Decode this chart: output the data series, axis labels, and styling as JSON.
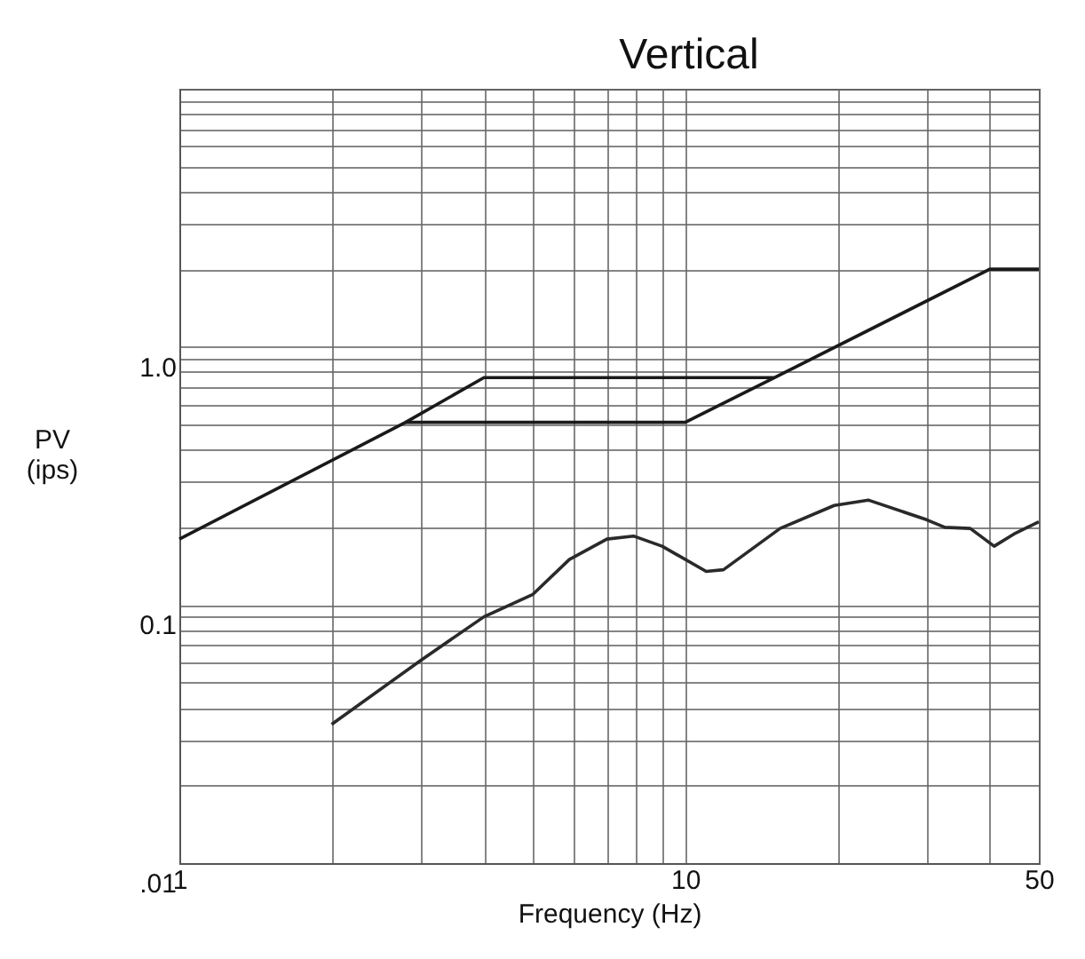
{
  "chart_data": {
    "type": "line",
    "title": "Vertical",
    "xlabel": "Frequency (Hz)",
    "ylabel": "PV (ips)",
    "log": "xy",
    "grid": true,
    "legend": false,
    "line_style": "solid",
    "marker": "none",
    "xlim": [
      1,
      50
    ],
    "ylim": [
      0.01,
      10
    ],
    "xticks": [
      1,
      {
        "value": 2,
        "label": null
      },
      {
        "value": 3,
        "label": null
      },
      {
        "value": 4,
        "label": null
      },
      {
        "value": 5,
        "label": null
      },
      {
        "value": 6,
        "label": null
      },
      {
        "value": 7,
        "label": null
      },
      {
        "value": 8,
        "label": null
      },
      {
        "value": 9,
        "label": null
      },
      10,
      {
        "value": 20,
        "label": null
      },
      {
        "value": 30,
        "label": null
      },
      {
        "value": 40,
        "label": null
      },
      50
    ],
    "yticks": [
      {
        "value": 0.01,
        "label": ".01"
      },
      {
        "value": 0.02,
        "label": null
      },
      {
        "value": 0.03,
        "label": null
      },
      {
        "value": 0.04,
        "label": null
      },
      {
        "value": 0.05,
        "label": null
      },
      {
        "value": 0.06,
        "label": null
      },
      {
        "value": 0.07,
        "label": null
      },
      {
        "value": 0.08,
        "label": null
      },
      {
        "value": 0.09,
        "label": null
      },
      0.1,
      {
        "value": 0.2,
        "label": null
      },
      {
        "value": 0.3,
        "label": null
      },
      {
        "value": 0.4,
        "label": null
      },
      {
        "value": 0.5,
        "label": null
      },
      {
        "value": 0.6,
        "label": null
      },
      {
        "value": 0.7,
        "label": null
      },
      {
        "value": 0.8,
        "label": null
      },
      {
        "value": 0.9,
        "label": null
      },
      {
        "value": 1,
        "label": "1.0"
      },
      {
        "value": 2,
        "label": null
      },
      {
        "value": 3,
        "label": null
      },
      {
        "value": 4,
        "label": null
      },
      {
        "value": 5,
        "label": null
      },
      {
        "value": 6,
        "label": null
      },
      {
        "value": 7,
        "label": null
      },
      {
        "value": 8,
        "label": null
      },
      {
        "value": 9,
        "label": null
      },
      {
        "value": 10,
        "label": null
      }
    ],
    "series": [
      {
        "color": "#1a1a1a",
        "x": [
          1,
          2.8,
          4,
          15,
          40,
          50
        ],
        "values": [
          0.18,
          0.51,
          0.76,
          0.76,
          2.0,
          2.0
        ]
      },
      {
        "color": "#1a1a1a",
        "x": [
          2.8,
          10,
          15
        ],
        "values": [
          0.51,
          0.51,
          0.76
        ]
      },
      {
        "color": "#2a2a2a",
        "x": [
          2,
          3,
          4,
          5,
          5.9,
          7,
          7.9,
          9,
          11,
          11.9,
          15.4,
          19.7,
          23,
          30,
          32.6,
          36.6,
          40.8,
          45,
          50
        ],
        "values": [
          0.0345,
          0.061,
          0.09,
          0.11,
          0.15,
          0.18,
          0.185,
          0.169,
          0.135,
          0.137,
          0.198,
          0.243,
          0.255,
          0.214,
          0.2,
          0.198,
          0.169,
          0.19,
          0.21
        ]
      }
    ]
  }
}
